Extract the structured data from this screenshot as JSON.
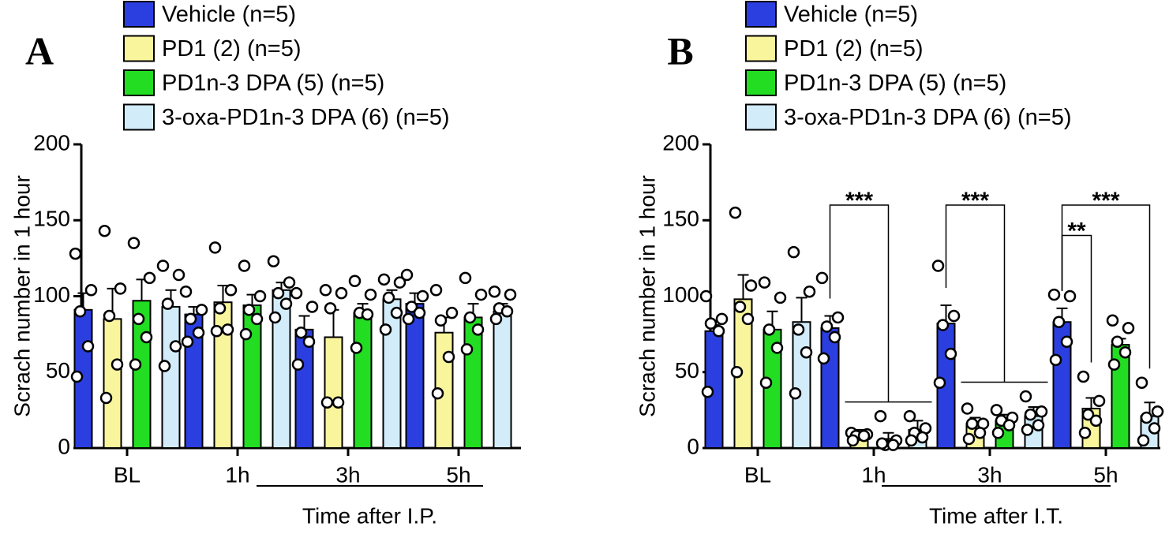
{
  "chart_data": [
    {
      "type": "bar",
      "panel_label": "A",
      "y_label": "Scrach number in 1 hour",
      "x_label": "Time after I.P.",
      "categories": [
        "BL",
        "1h",
        "3h",
        "5h"
      ],
      "ylim": [
        0,
        200
      ],
      "yticks": [
        0,
        50,
        100,
        150,
        200
      ],
      "series": [
        {
          "name": "Vehicle (n=5)",
          "color": "#2b3fe0",
          "values": [
            91,
            88,
            78,
            95
          ],
          "errors": [
            11,
            5,
            9,
            7
          ],
          "points": [
            [
              128,
              104,
              90,
              67,
              47
            ],
            [
              103,
              91,
              85,
              76,
              70
            ],
            [
              102,
              93,
              76,
              70,
              55
            ],
            [
              114,
              100,
              93,
              89,
              85
            ]
          ]
        },
        {
          "name": "PD1 (2) (n=5)",
          "color": "#f8f59c",
          "values": [
            85,
            96,
            73,
            76
          ],
          "errors": [
            20,
            11,
            18,
            10
          ],
          "points": [
            [
              143,
              105,
              87,
              55,
              33
            ],
            [
              132,
              104,
              92,
              78,
              77
            ],
            [
              104,
              102,
              92,
              30,
              30
            ],
            [
              104,
              89,
              84,
              60,
              36
            ]
          ]
        },
        {
          "name": "PD1n-3 DPA (5) (n=5)",
          "color": "#22dd22",
          "values": [
            97,
            94,
            89,
            86
          ],
          "errors": [
            14,
            7,
            6,
            9
          ],
          "points": [
            [
              135,
              112,
              85,
              73,
              55
            ],
            [
              120,
              100,
              91,
              85,
              75
            ],
            [
              110,
              101,
              89,
              88,
              66
            ],
            [
              112,
              101,
              86,
              78,
              65
            ]
          ]
        },
        {
          "name": "3-oxa-PD1n-3 DPA (6) (n=5)",
          "color": "#d2ecfa",
          "values": [
            93,
            104,
            98,
            90
          ],
          "errors": [
            11,
            5,
            6,
            5
          ],
          "points": [
            [
              120,
              114,
              95,
              67,
              54
            ],
            [
              123,
              109,
              102,
              95,
              86
            ],
            [
              111,
              109,
              99,
              89,
              78
            ],
            [
              103,
              101,
              92,
              90,
              85
            ]
          ]
        }
      ]
    },
    {
      "type": "bar",
      "panel_label": "B",
      "y_label": "Scrach number in 1 hour",
      "x_label": "Time after I.T.",
      "categories": [
        "BL",
        "1h",
        "3h",
        "5h"
      ],
      "ylim": [
        0,
        200
      ],
      "yticks": [
        0,
        50,
        100,
        150,
        200
      ],
      "series": [
        {
          "name": "Vehicle (n=5)",
          "color": "#2b3fe0",
          "values": [
            77,
            79,
            82,
            83
          ],
          "errors": [
            4,
            8,
            12,
            9
          ],
          "points": [
            [
              100,
              85,
              82,
              77,
              37
            ],
            [
              112,
              86,
              80,
              73,
              59
            ],
            [
              120,
              87,
              81,
              62,
              43
            ],
            [
              101,
              100,
              83,
              70,
              58
            ]
          ]
        },
        {
          "name": "PD1 (2) (n=5)",
          "color": "#f8f59c",
          "values": [
            98,
            9,
            16,
            26
          ],
          "errors": [
            16,
            3,
            4,
            7
          ],
          "points": [
            [
              155,
              107,
              93,
              85,
              50
            ],
            [
              10,
              9,
              8,
              8,
              5
            ],
            [
              26,
              16,
              16,
              10,
              6
            ],
            [
              47,
              31,
              22,
              18,
              10
            ]
          ]
        },
        {
          "name": "PD1n-3 DPA (5) (n=5)",
          "color": "#22dd22",
          "values": [
            78,
            6,
            18,
            68
          ],
          "errors": [
            12,
            4,
            4,
            4
          ],
          "points": [
            [
              109,
              99,
              78,
              66,
              43
            ],
            [
              21,
              5,
              2,
              2,
              3
            ],
            [
              25,
              20,
              18,
              15,
              10
            ],
            [
              84,
              79,
              70,
              63,
              55
            ]
          ]
        },
        {
          "name": "3-oxa-PD1n-3 DPA (6) (n=5)",
          "color": "#d2ecfa",
          "values": [
            83,
            12,
            21,
            21
          ],
          "errors": [
            16,
            6,
            6,
            9
          ],
          "points": [
            [
              129,
              103,
              78,
              63,
              36
            ],
            [
              21,
              13,
              10,
              7,
              5
            ],
            [
              34,
              24,
              22,
              15,
              12
            ],
            [
              43,
              24,
              20,
              13,
              5
            ]
          ]
        }
      ],
      "annotations": [
        {
          "text": "***",
          "category": 1,
          "to_series": [
            1,
            2,
            3
          ]
        },
        {
          "text": "***",
          "category": 2,
          "to_series": [
            1,
            2,
            3
          ]
        },
        {
          "text": "***",
          "category": 3,
          "to_series": [
            3
          ]
        },
        {
          "text": "**",
          "category": 3,
          "to_series": [
            1
          ]
        }
      ]
    }
  ]
}
